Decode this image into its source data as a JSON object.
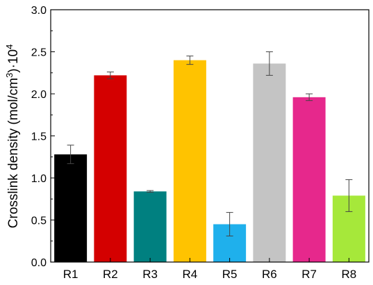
{
  "chart_data": {
    "type": "bar",
    "title": "",
    "xlabel": "",
    "ylabel_parts": [
      "Crosslink density (mol/cm",
      "3",
      ")·10",
      "4"
    ],
    "categories": [
      "R1",
      "R2",
      "R3",
      "R4",
      "R5",
      "R6",
      "R7",
      "R8"
    ],
    "values": [
      1.28,
      2.22,
      0.84,
      2.4,
      0.45,
      2.36,
      1.96,
      0.79
    ],
    "errors": [
      0.11,
      0.04,
      0.01,
      0.05,
      0.14,
      0.14,
      0.04,
      0.19
    ],
    "colors": [
      "#000000",
      "#d40000",
      "#008080",
      "#ffc300",
      "#1fb0ec",
      "#c4c4c4",
      "#e6288c",
      "#a6e83a"
    ],
    "ylim": [
      0,
      3.0
    ],
    "yticks": [
      "0.0",
      "0.5",
      "1.0",
      "1.5",
      "2.0",
      "2.5",
      "3.0"
    ],
    "grid": false,
    "legend": "none"
  }
}
